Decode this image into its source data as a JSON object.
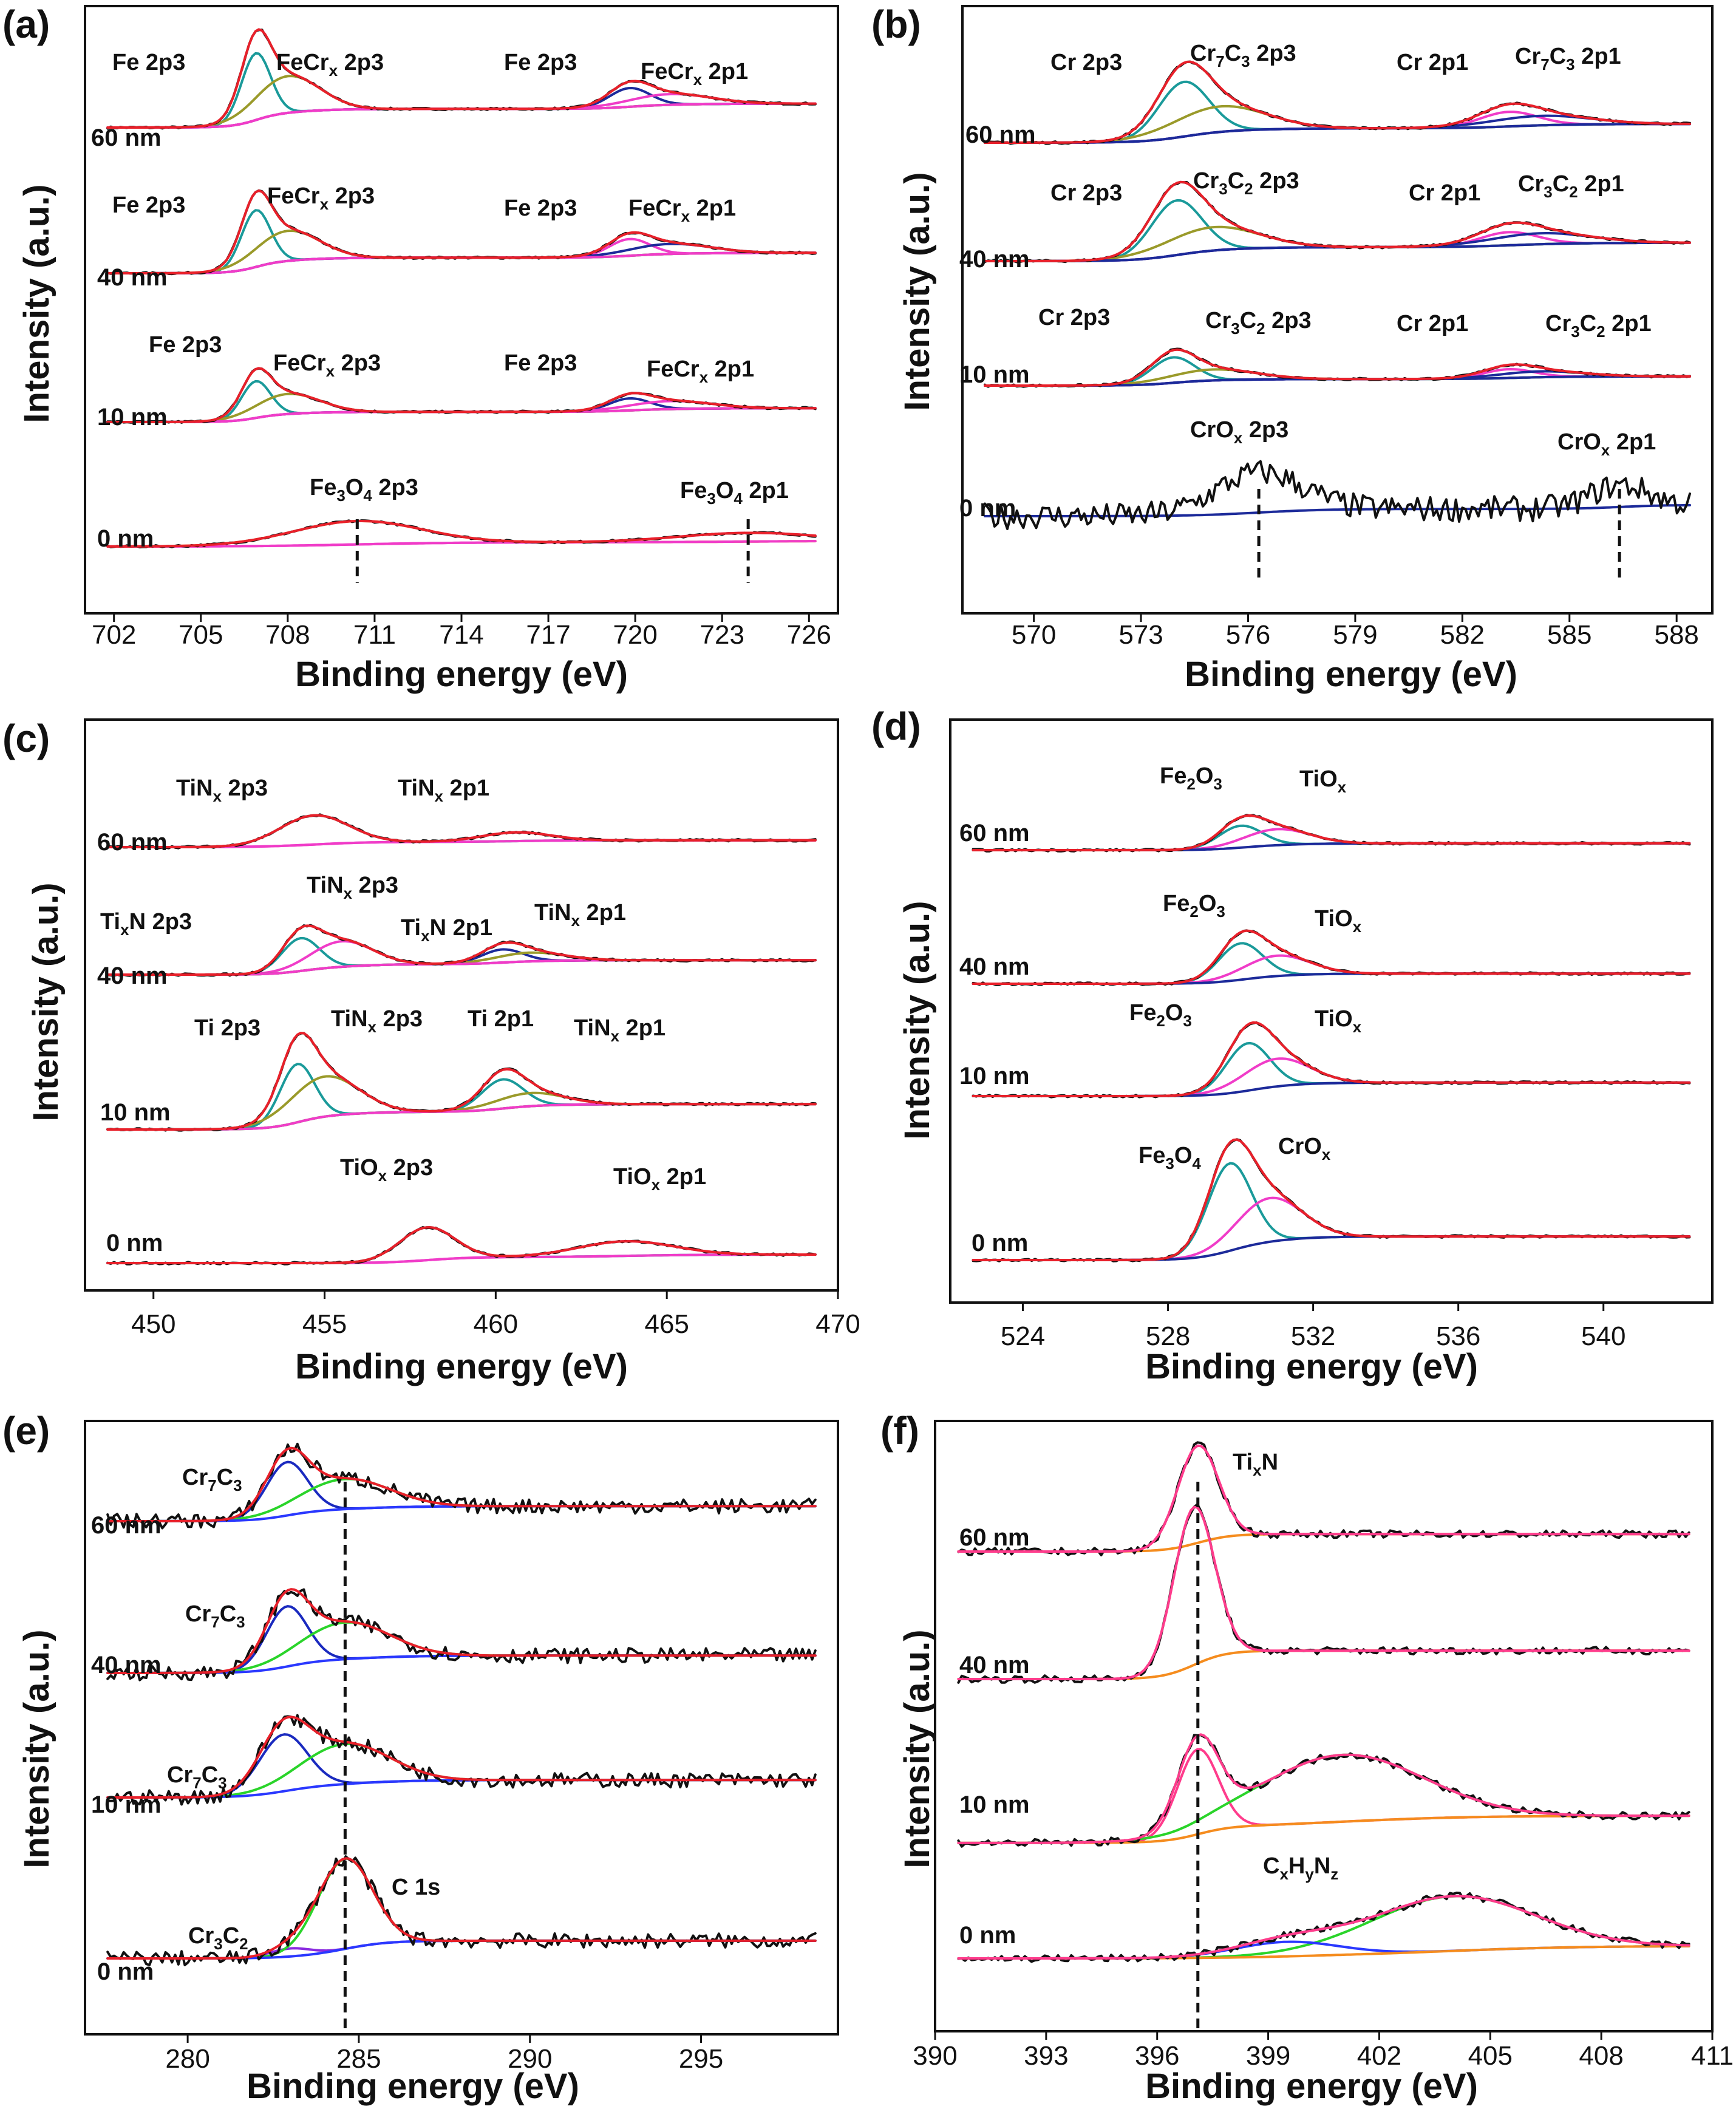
{
  "figure": {
    "panel_labels": [
      "(a)",
      "(b)",
      "(c)",
      "(d)",
      "(e)",
      "(f)"
    ],
    "y_axis_title": "Intensity (a.u.)",
    "colors": {
      "raw": "#111111",
      "envelope": "#e8202a",
      "teal": "#1a9a9a",
      "olive": "#9a9a2a",
      "blue": "#1c2a9a",
      "magenta": "#f03cc8",
      "orange": "#f58c1e",
      "green": "#2ad42a",
      "darkblue": "#1a2abf",
      "purple": "#8a2ae0",
      "pink": "#ff3c8c",
      "midblue": "#2a38ff"
    }
  },
  "chart_data": [
    {
      "id": "a",
      "type": "line",
      "title": "(a)",
      "xlabel": "Binding energy (eV)",
      "ylabel": "Intensity (a.u.)",
      "xlim": [
        701,
        727
      ],
      "xticks": [
        702,
        705,
        708,
        711,
        714,
        717,
        720,
        723,
        726
      ],
      "series": [
        {
          "name": "60 nm",
          "peaks": [
            {
              "label": "Fe 2p3",
              "x": 706.8
            },
            {
              "label": "FeCrx 2p3",
              "x": 708.0
            },
            {
              "label": "Fe 2p3",
              "x": 719.9
            },
            {
              "label": "FeCrx 2p1",
              "x": 721.0
            }
          ]
        },
        {
          "name": "40 nm",
          "peaks": [
            {
              "label": "Fe 2p3",
              "x": 706.8
            },
            {
              "label": "FeCrx 2p3",
              "x": 708.0
            },
            {
              "label": "Fe 2p3",
              "x": 719.9
            },
            {
              "label": "FeCrx 2p1",
              "x": 721.0
            }
          ]
        },
        {
          "name": "10 nm",
          "peaks": [
            {
              "label": "Fe 2p3",
              "x": 706.8
            },
            {
              "label": "FeCrx 2p3",
              "x": 708.0
            },
            {
              "label": "Fe 2p3",
              "x": 719.9
            },
            {
              "label": "FeCrx 2p1",
              "x": 721.0
            }
          ]
        },
        {
          "name": "0 nm",
          "peaks": [
            {
              "label": "Fe3O4 2p3",
              "x": 710.4
            },
            {
              "label": "Fe3O4 2p1",
              "x": 723.9
            }
          ]
        }
      ]
    },
    {
      "id": "b",
      "type": "line",
      "title": "(b)",
      "xlabel": "Binding  energy (eV)",
      "ylabel": "Intensity (a.u.)",
      "xlim": [
        568,
        589
      ],
      "xticks": [
        570,
        573,
        576,
        579,
        582,
        585,
        588
      ],
      "series": [
        {
          "name": "60 nm",
          "peaks": [
            {
              "label": "Cr 2p3",
              "x": 574.2
            },
            {
              "label": "Cr7C3 2p3",
              "x": 575.2
            },
            {
              "label": "Cr 2p1",
              "x": 583.3
            },
            {
              "label": "Cr7C3 2p1",
              "x": 584.2
            }
          ]
        },
        {
          "name": "40 nm",
          "peaks": [
            {
              "label": "Cr 2p3",
              "x": 574.0
            },
            {
              "label": "Cr3C2 2p3",
              "x": 575.0
            },
            {
              "label": "Cr 2p1",
              "x": 583.3
            },
            {
              "label": "Cr3C2 2p1",
              "x": 584.2
            }
          ]
        },
        {
          "name": "10 nm",
          "peaks": [
            {
              "label": "Cr 2p3",
              "x": 573.9
            },
            {
              "label": "Cr3C2 2p3",
              "x": 575.0
            },
            {
              "label": "Cr 2p1",
              "x": 583.3
            },
            {
              "label": "Cr3C2 2p1",
              "x": 584.2
            }
          ]
        },
        {
          "name": "0 nm",
          "peaks": [
            {
              "label": "CrOx 2p3",
              "x": 576.3
            },
            {
              "label": "CrOx 2p1",
              "x": 586.4
            }
          ]
        }
      ]
    },
    {
      "id": "c",
      "type": "line",
      "title": "(c)",
      "xlabel": "Binding energy (eV)",
      "ylabel": "Intensity (a.u.)",
      "xlim": [
        448,
        470
      ],
      "xticks": [
        450,
        455,
        460,
        465,
        470
      ],
      "series": [
        {
          "name": "60 nm",
          "peaks": [
            {
              "label": "TiNx 2p3",
              "x": 454.7
            },
            {
              "label": "TiNx 2p1",
              "x": 460.6
            }
          ]
        },
        {
          "name": "40 nm",
          "peaks": [
            {
              "label": "TixN 2p3",
              "x": 454.3
            },
            {
              "label": "TiNx 2p3",
              "x": 455.5
            },
            {
              "label": "TixN 2p1",
              "x": 460.2
            },
            {
              "label": "TiNx 2p1",
              "x": 461.0
            }
          ]
        },
        {
          "name": "10 nm",
          "peaks": [
            {
              "label": "Ti 2p3",
              "x": 454.2
            },
            {
              "label": "TiNx 2p3",
              "x": 455.0
            },
            {
              "label": "Ti 2p1",
              "x": 460.2
            },
            {
              "label": "TiNx 2p1",
              "x": 461.0
            }
          ]
        },
        {
          "name": "0 nm",
          "peaks": [
            {
              "label": "TiOx 2p3",
              "x": 458.0
            },
            {
              "label": "TiOx 2p1",
              "x": 463.8
            }
          ]
        }
      ]
    },
    {
      "id": "d",
      "type": "line",
      "title": "(d)",
      "xlabel": "Binding energy (eV)",
      "ylabel": "Intensity (a.u.)",
      "xlim": [
        522,
        543
      ],
      "xticks": [
        524,
        528,
        532,
        536,
        540
      ],
      "series": [
        {
          "name": "60 nm",
          "peaks": [
            {
              "label": "Fe2O3",
              "x": 530.0
            },
            {
              "label": "TiOx",
              "x": 531.0
            }
          ]
        },
        {
          "name": "40 nm",
          "peaks": [
            {
              "label": "Fe2O3",
              "x": 530.0
            },
            {
              "label": "TiOx",
              "x": 531.0
            }
          ]
        },
        {
          "name": "10 nm",
          "peaks": [
            {
              "label": "Fe2O3",
              "x": 530.2
            },
            {
              "label": "TiOx",
              "x": 531.0
            }
          ]
        },
        {
          "name": "0 nm",
          "peaks": [
            {
              "label": "Fe3O4",
              "x": 529.7
            },
            {
              "label": "CrOx",
              "x": 530.8
            }
          ]
        }
      ]
    },
    {
      "id": "e",
      "type": "line",
      "title": "(e)",
      "xlabel": "Binding energy (eV)",
      "ylabel": "Intensity (a.u.)",
      "xlim": [
        277,
        299
      ],
      "xticks": [
        280,
        285,
        290,
        295
      ],
      "dashed_x": 284.6,
      "series": [
        {
          "name": "60 nm",
          "peaks": [
            {
              "label": "Cr7C3",
              "x": 282.9
            }
          ]
        },
        {
          "name": "40 nm",
          "peaks": [
            {
              "label": "Cr7C3",
              "x": 282.9
            }
          ]
        },
        {
          "name": "10 nm",
          "peaks": [
            {
              "label": "Cr7C3",
              "x": 282.8
            }
          ]
        },
        {
          "name": "0 nm",
          "peaks": [
            {
              "label": "Cr3C2",
              "x": 283.0
            },
            {
              "label": "C 1s",
              "x": 284.6
            }
          ]
        }
      ]
    },
    {
      "id": "f",
      "type": "line",
      "title": "(f)",
      "xlabel": "Binding energy (eV)",
      "ylabel": "Intensity (a.u.)",
      "xlim": [
        390,
        411
      ],
      "xticks": [
        390,
        393,
        396,
        399,
        402,
        405,
        408,
        411
      ],
      "dashed_x": 397.1,
      "series": [
        {
          "name": "60 nm",
          "peaks": [
            {
              "label": "TixN",
              "x": 397.1
            }
          ]
        },
        {
          "name": "40 nm",
          "peaks": [
            {
              "label": "TixN",
              "x": 397.0
            }
          ]
        },
        {
          "name": "10 nm",
          "peaks": [
            {
              "label": "TixN",
              "x": 397.1
            },
            {
              "label": "CxHyNz",
              "x": 401.0
            }
          ]
        },
        {
          "name": "0 nm",
          "peaks": [
            {
              "label": "CxHyNz",
              "x": 404.0
            }
          ]
        }
      ]
    }
  ]
}
